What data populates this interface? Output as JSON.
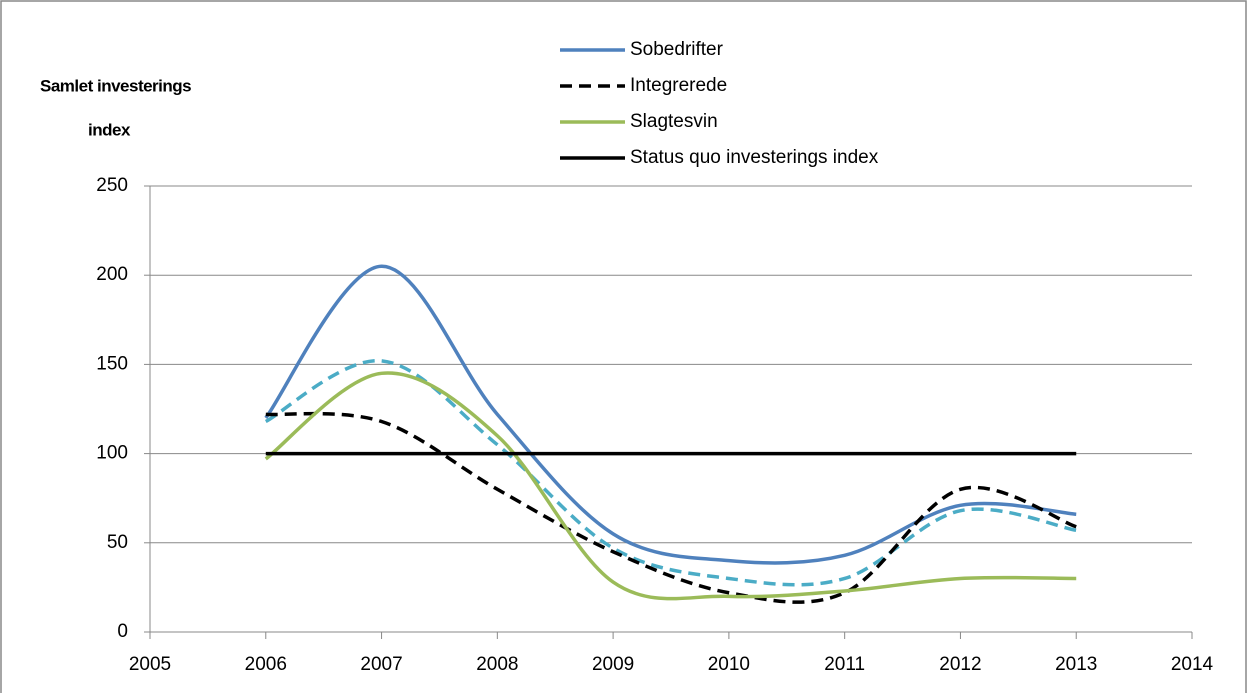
{
  "chart_data": {
    "type": "line",
    "ylabel": [
      "Samlet investerings",
      "index"
    ],
    "x": [
      2006,
      2007,
      2008,
      2009,
      2010,
      2011,
      2012,
      2013
    ],
    "series": [
      {
        "name": "Sobedrifter",
        "color": "#4f81bd",
        "dash": "solid",
        "values": [
          120,
          205,
          122,
          55,
          40,
          43,
          71,
          66
        ]
      },
      {
        "name": "Integrerede",
        "color": "#000000",
        "dash": "dashed",
        "values": [
          122,
          118,
          80,
          45,
          22,
          22,
          80,
          59
        ]
      },
      {
        "name": "Slagtesvin",
        "color": "#9bbb59",
        "dash": "solid",
        "values": [
          97,
          145,
          110,
          28,
          20,
          23,
          30,
          30
        ]
      },
      {
        "name": "Status quo investerings index",
        "color": "#000000",
        "dash": "solid",
        "values": [
          100,
          100,
          100,
          100,
          100,
          100,
          100,
          100
        ]
      },
      {
        "color": "#4bacc6",
        "dash": "dashed",
        "values": [
          118,
          152,
          105,
          47,
          30,
          30,
          68,
          57
        ]
      }
    ],
    "xlim": [
      2005,
      2014
    ],
    "xticks": [
      2005,
      2006,
      2007,
      2008,
      2009,
      2010,
      2011,
      2012,
      2013,
      2014
    ],
    "ylim": [
      0,
      250
    ],
    "yticks": [
      0,
      50,
      100,
      150,
      200,
      250
    ],
    "grid": true,
    "smooth": true
  }
}
